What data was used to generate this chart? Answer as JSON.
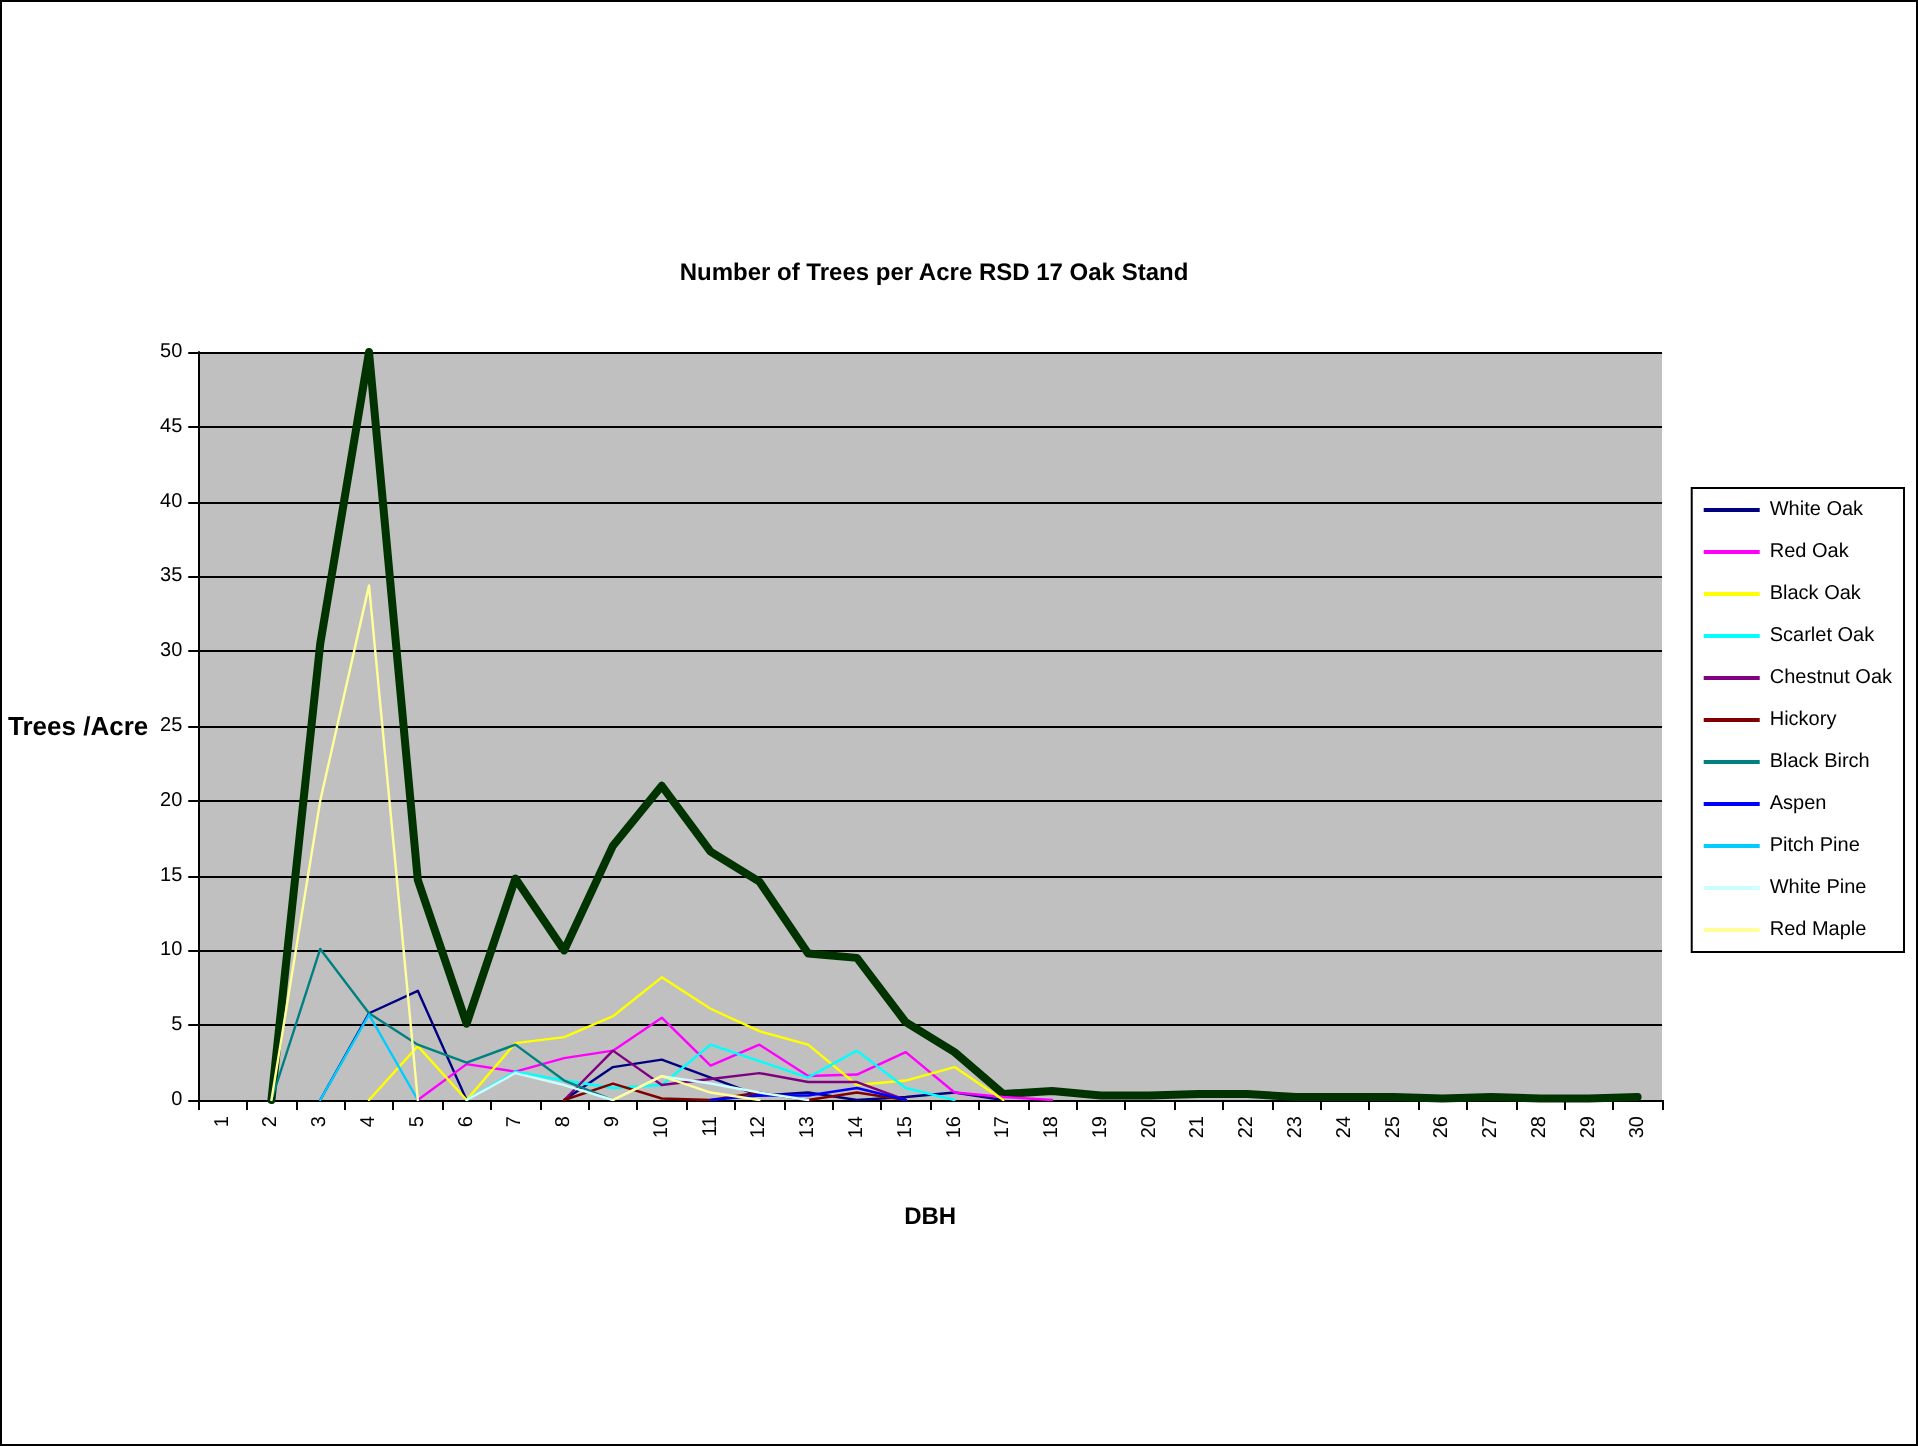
{
  "chart_data": {
    "type": "line",
    "title": "Number of Trees per Acre RSD 17 Oak Stand",
    "xlabel": "DBH",
    "ylabel": "Trees /Acre",
    "categories": [
      "1",
      "2",
      "3",
      "4",
      "5",
      "6",
      "7",
      "8",
      "9",
      "10",
      "11",
      "12",
      "13",
      "14",
      "15",
      "16",
      "17",
      "18",
      "19",
      "20",
      "21",
      "22",
      "23",
      "24",
      "25",
      "26",
      "27",
      "28",
      "29",
      "30"
    ],
    "ylim": [
      0,
      50
    ],
    "yticks": [
      0,
      5,
      10,
      15,
      20,
      25,
      30,
      35,
      40,
      45,
      50
    ],
    "grid": "y",
    "legend": "right",
    "marker": "none",
    "line_style": "solid",
    "series": [
      {
        "name": "White Oak",
        "color": "#000080",
        "values": [
          null,
          null,
          0,
          5.8,
          7.3,
          0,
          null,
          0,
          2.2,
          2.7,
          1.5,
          0.3,
          0.5,
          0,
          0.2,
          0.5,
          0,
          null,
          null,
          null,
          null,
          null,
          null,
          null,
          null,
          null,
          null,
          null,
          null,
          null
        ]
      },
      {
        "name": "Red Oak",
        "color": "#ff00ff",
        "values": [
          null,
          null,
          null,
          null,
          0,
          2.4,
          1.9,
          2.8,
          3.3,
          5.5,
          2.3,
          3.7,
          1.6,
          1.7,
          3.2,
          0.5,
          0.2,
          0,
          null,
          null,
          null,
          null,
          null,
          null,
          null,
          null,
          null,
          null,
          null,
          null
        ]
      },
      {
        "name": "Black Oak",
        "color": "#ffff00",
        "values": [
          null,
          null,
          null,
          0,
          3.6,
          0,
          3.8,
          4.2,
          5.6,
          8.2,
          6.1,
          4.6,
          3.7,
          1.0,
          1.3,
          2.2,
          0,
          null,
          null,
          null,
          null,
          null,
          null,
          null,
          null,
          null,
          null,
          null,
          null,
          null
        ]
      },
      {
        "name": "Scarlet Oak",
        "color": "#00ffff",
        "values": [
          null,
          null,
          null,
          null,
          null,
          0,
          1.9,
          1.3,
          0.8,
          1.0,
          3.7,
          2.6,
          1.5,
          3.3,
          0.8,
          0,
          null,
          null,
          null,
          null,
          null,
          null,
          null,
          null,
          null,
          null,
          null,
          null,
          null,
          null
        ]
      },
      {
        "name": "Chestnut Oak",
        "color": "#800080",
        "values": [
          null,
          null,
          null,
          null,
          null,
          null,
          null,
          0,
          3.3,
          1.0,
          1.4,
          1.8,
          1.2,
          1.2,
          0,
          null,
          null,
          null,
          null,
          null,
          null,
          null,
          null,
          null,
          null,
          null,
          null,
          null,
          null,
          null
        ]
      },
      {
        "name": "Hickory",
        "color": "#800000",
        "values": [
          null,
          null,
          null,
          null,
          null,
          null,
          null,
          0,
          1.1,
          0.1,
          0,
          0.5,
          0,
          0.5,
          0,
          null,
          null,
          null,
          null,
          null,
          null,
          null,
          null,
          null,
          null,
          null,
          null,
          null,
          null,
          null
        ]
      },
      {
        "name": "Black Birch",
        "color": "#008080",
        "values": [
          null,
          0,
          10.1,
          5.8,
          3.7,
          2.5,
          3.7,
          1.3,
          0,
          null,
          null,
          null,
          null,
          null,
          null,
          null,
          null,
          null,
          null,
          null,
          null,
          null,
          null,
          null,
          null,
          null,
          null,
          null,
          null,
          null
        ]
      },
      {
        "name": "Aspen",
        "color": "#0000ff",
        "values": [
          null,
          null,
          null,
          null,
          null,
          null,
          null,
          null,
          null,
          null,
          0,
          0.3,
          0.3,
          0.8,
          0,
          null,
          null,
          null,
          null,
          null,
          null,
          null,
          null,
          null,
          null,
          null,
          null,
          null,
          null,
          null
        ]
      },
      {
        "name": "Pitch Pine",
        "color": "#00ccff",
        "values": [
          null,
          null,
          0,
          5.7,
          0,
          null,
          null,
          null,
          null,
          null,
          null,
          null,
          null,
          null,
          null,
          null,
          null,
          null,
          null,
          null,
          null,
          null,
          null,
          null,
          null,
          null,
          null,
          null,
          null,
          null
        ]
      },
      {
        "name": "White Pine",
        "color": "#ccffff",
        "values": [
          null,
          null,
          null,
          null,
          null,
          0,
          1.8,
          1.0,
          0,
          1.6,
          1.1,
          0.5,
          0,
          null,
          null,
          null,
          null,
          null,
          null,
          null,
          null,
          null,
          null,
          null,
          null,
          null,
          null,
          null,
          null,
          null
        ]
      },
      {
        "name": "Red Maple",
        "color": "#ffff99",
        "values": [
          null,
          0,
          20,
          34.4,
          0,
          null,
          null,
          null,
          0,
          1.6,
          0.5,
          0,
          null,
          null,
          null,
          null,
          null,
          null,
          null,
          null,
          null,
          null,
          null,
          null,
          null,
          null,
          null,
          null,
          null,
          null
        ]
      },
      {
        "color": "#003300",
        "values": [
          null,
          0,
          30.5,
          50,
          14.7,
          5.1,
          14.8,
          10,
          17,
          21,
          16.6,
          14.6,
          9.8,
          9.5,
          5.2,
          3.2,
          0.4,
          0.6,
          0.3,
          0.3,
          0.4,
          0.4,
          0.2,
          0.2,
          0.2,
          0.1,
          0.2,
          0.1,
          0.1,
          0.2
        ]
      }
    ]
  }
}
